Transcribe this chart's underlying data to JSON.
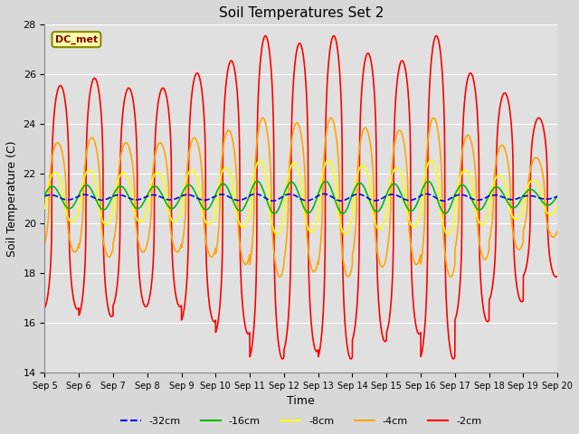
{
  "title": "Soil Temperatures Set 2",
  "xlabel": "Time",
  "ylabel": "Soil Temperature (C)",
  "ylim": [
    14,
    28
  ],
  "xlim": [
    0,
    15
  ],
  "annotation_text": "DC_met",
  "legend_labels": [
    "-32cm",
    "-16cm",
    "-8cm",
    "-4cm",
    "-2cm"
  ],
  "legend_colors": [
    "blue",
    "#00bb00",
    "yellow",
    "orange",
    "red"
  ],
  "fig_bg": "#d8d8d8",
  "axes_bg": "#e0e0e0",
  "days": 15,
  "start_day": 5,
  "points_per_day": 240,
  "base_temp": 21.05,
  "yticks": [
    14,
    16,
    18,
    20,
    22,
    24,
    26,
    28
  ],
  "amp2_days": [
    4.5,
    4.8,
    4.4,
    4.4,
    5.0,
    5.5,
    6.5,
    6.2,
    6.5,
    5.8,
    5.5,
    6.5,
    5.0,
    4.2,
    3.2
  ],
  "amp4_days": [
    2.2,
    2.4,
    2.2,
    2.2,
    2.4,
    2.7,
    3.2,
    3.0,
    3.2,
    2.8,
    2.7,
    3.2,
    2.5,
    2.1,
    1.6
  ],
  "amp8_days": [
    1.0,
    1.1,
    1.0,
    1.0,
    1.1,
    1.2,
    1.5,
    1.4,
    1.5,
    1.3,
    1.2,
    1.5,
    1.1,
    0.9,
    0.7
  ],
  "amp16_days": [
    0.45,
    0.5,
    0.45,
    0.45,
    0.5,
    0.55,
    0.65,
    0.62,
    0.65,
    0.58,
    0.55,
    0.65,
    0.5,
    0.42,
    0.32
  ],
  "amp32_days": [
    0.1,
    0.11,
    0.1,
    0.1,
    0.11,
    0.12,
    0.14,
    0.13,
    0.14,
    0.13,
    0.12,
    0.14,
    0.11,
    0.09,
    0.07
  ],
  "phase2_rad": -1.3,
  "phase4_rad": -0.8,
  "phase8_rad": -0.3,
  "phase16_rad": 0.2,
  "phase32_rad": 0.5,
  "sharpness2": 3.0,
  "sharpness4": 2.0,
  "sharpness8": 1.5
}
